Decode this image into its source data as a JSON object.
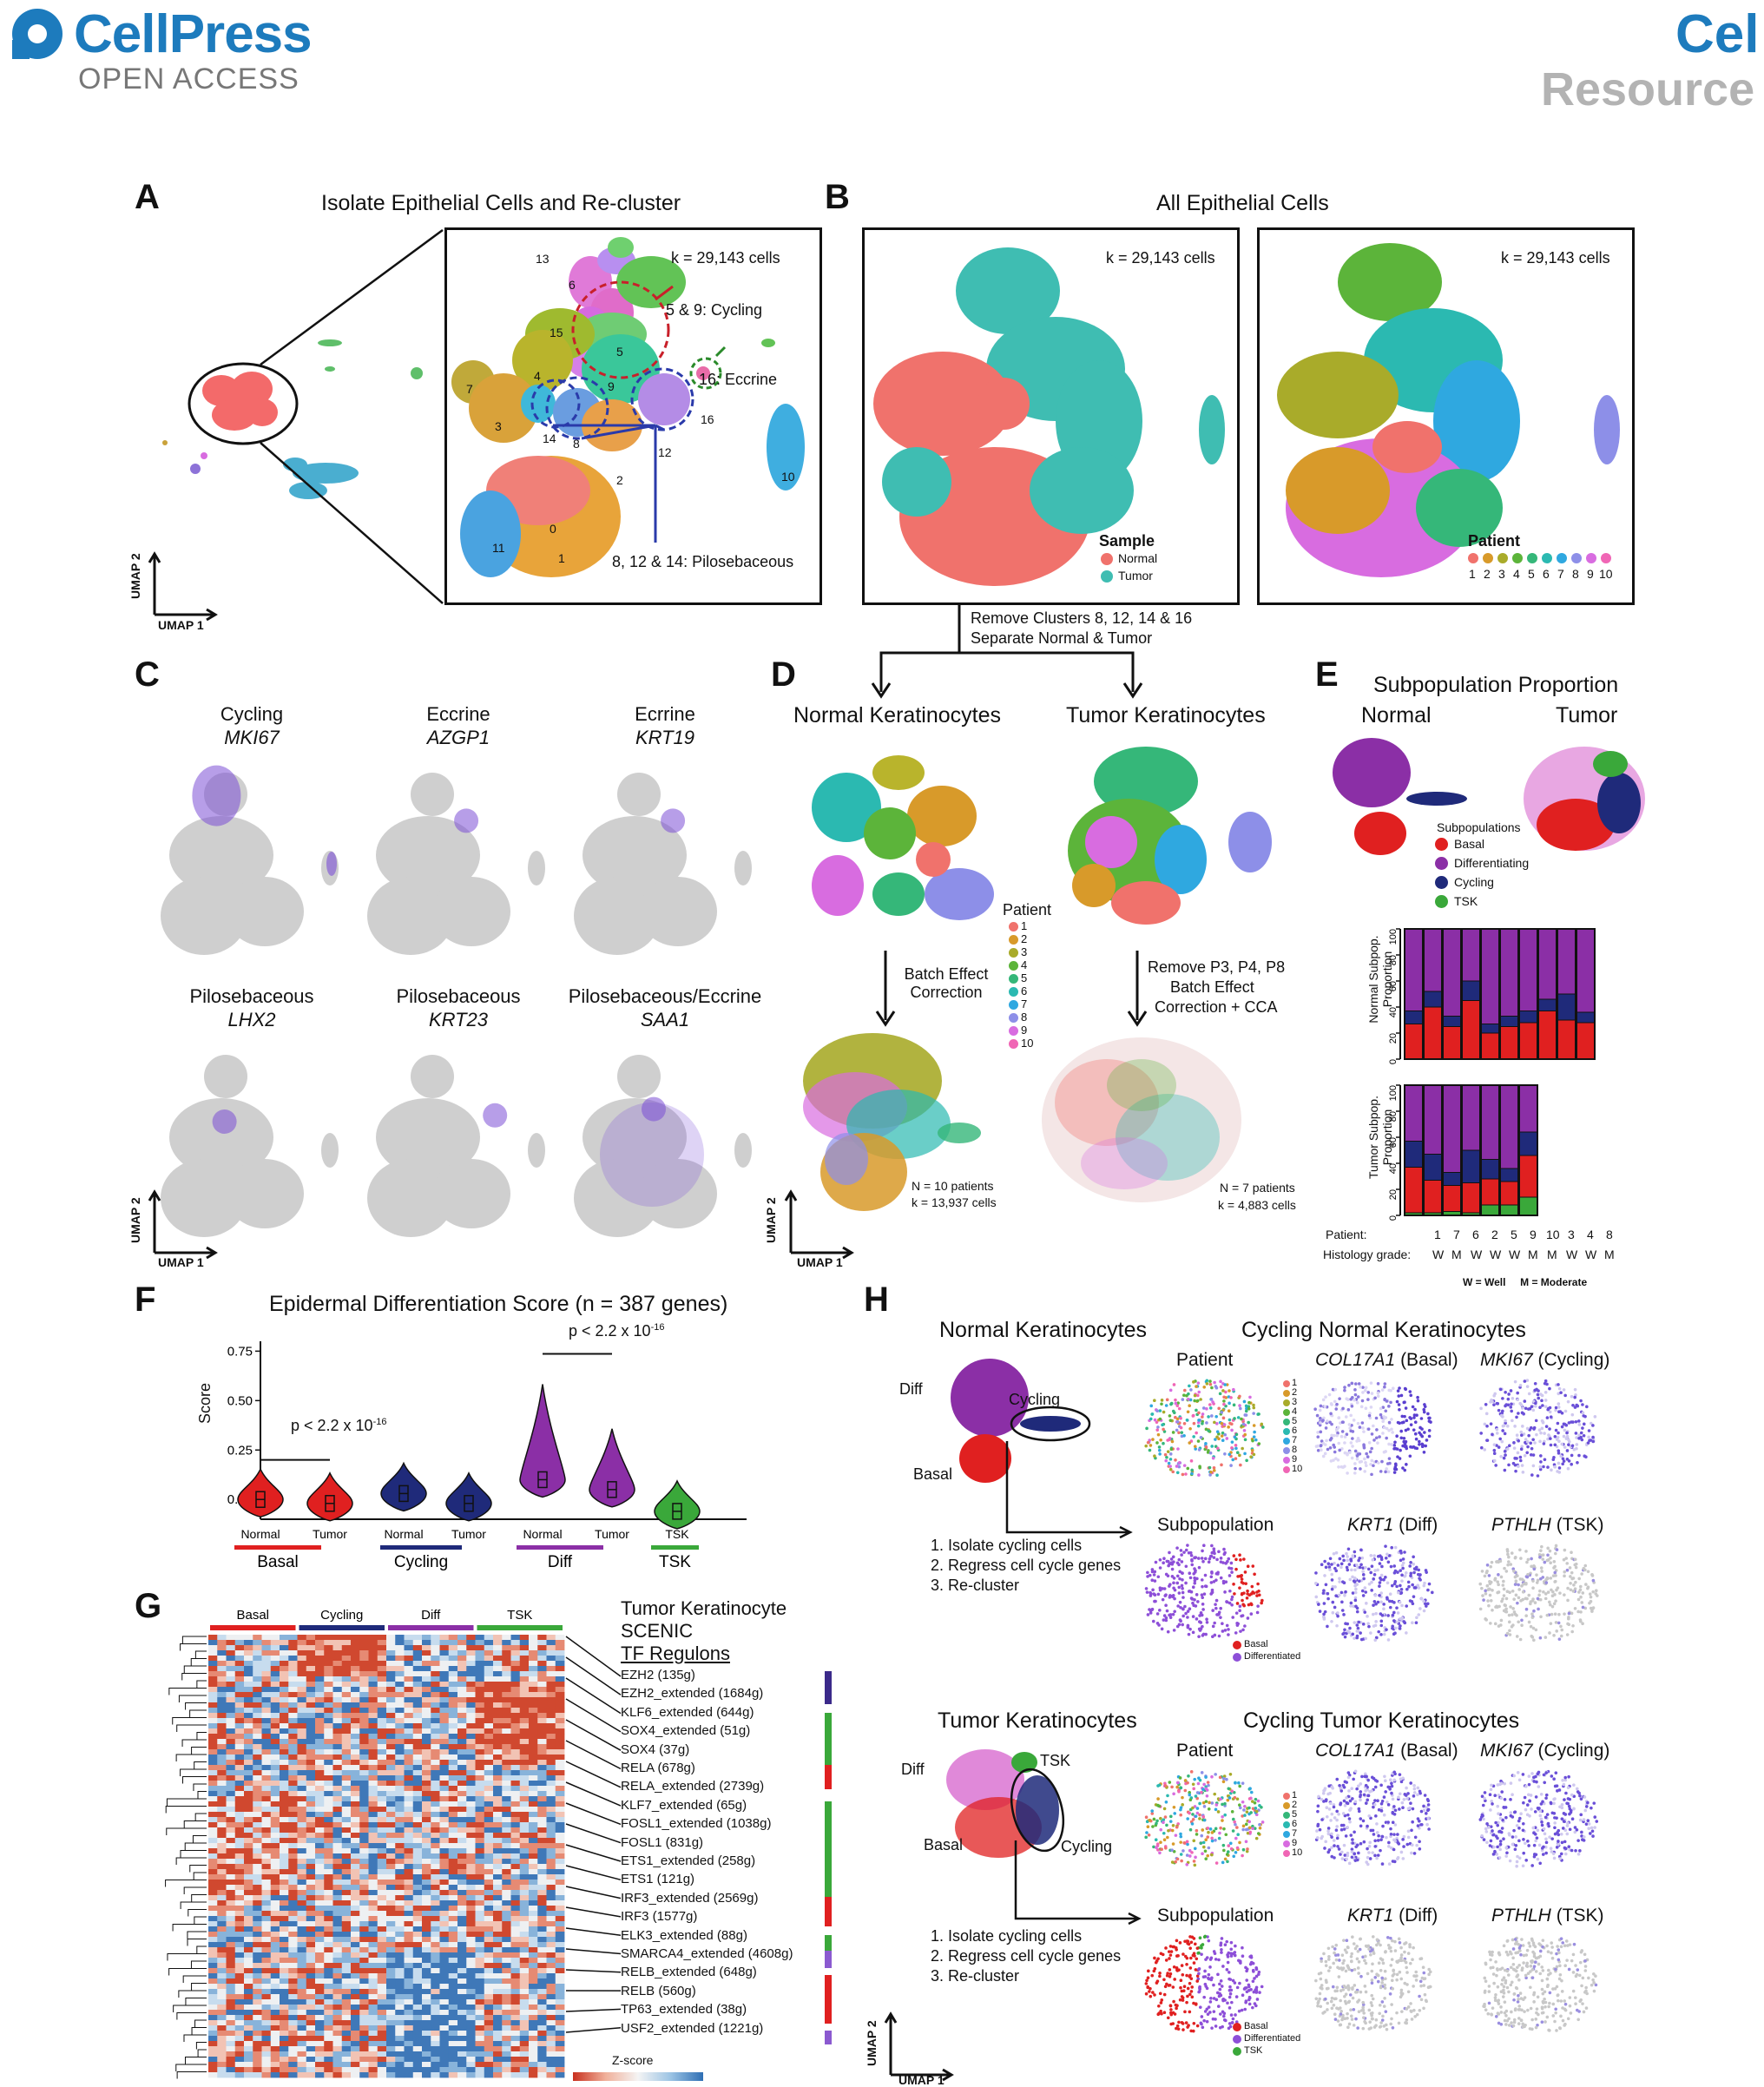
{
  "header": {
    "brand": "CellPress",
    "access": "OPEN ACCESS",
    "brand_right": "Cel",
    "article_type": "Resource"
  },
  "colors": {
    "brand": "#1d7bbd",
    "normal": "#f0726c",
    "tumor": "#3fbdb2",
    "basal": "#e02020",
    "differentiating": "#8b2fa6",
    "cycling": "#1f2a7a",
    "tsk": "#3aa83a",
    "feature_high": "#7b4fd6",
    "feature_low": "#cfcfcf"
  },
  "panelA": {
    "letter": "A",
    "title": "Isolate Epithelial Cells and Re-cluster",
    "cells": "k = 29,143 cells",
    "cluster_labels": [
      "13",
      "6",
      "15",
      "5",
      "9",
      "7",
      "4",
      "3",
      "14",
      "8",
      "2",
      "12",
      "16",
      "10",
      "0",
      "1",
      "11"
    ],
    "annot_cycling": "5 & 9: Cycling",
    "annot_eccrine": "16: Eccrine",
    "annot_pilo": "8, 12 & 14: Pilosebaceous",
    "axis_y": "UMAP 2",
    "axis_x": "UMAP 1"
  },
  "panelB": {
    "letter": "B",
    "title": "All Epithelial Cells",
    "cells_left": "k = 29,143 cells",
    "cells_right": "k = 29,143 cells",
    "sample_legend_title": "Sample",
    "sample_legend": [
      "Normal",
      "Tumor"
    ],
    "patient_legend_title": "Patient",
    "patient_legend": [
      "1",
      "2",
      "3",
      "4",
      "5",
      "6",
      "7",
      "8",
      "9",
      "10"
    ],
    "patient_colors": [
      "#f0726c",
      "#d89a2a",
      "#a9ab2a",
      "#5cb43a",
      "#35b779",
      "#2bb9b1",
      "#2fa8e0",
      "#8d8fe8",
      "#d86ce0",
      "#f066b5"
    ],
    "flow_line1": "Remove Clusters 8, 12, 14 & 16",
    "flow_line2": "Separate Normal & Tumor"
  },
  "panelC": {
    "letter": "C",
    "features": [
      {
        "group": "Cycling",
        "gene": "MKI67"
      },
      {
        "group": "Eccrine",
        "gene": "AZGP1"
      },
      {
        "group": "Ecrrine",
        "gene": "KRT19"
      },
      {
        "group": "Pilosebaceous",
        "gene": "LHX2"
      },
      {
        "group": "Pilosebaceous",
        "gene": "KRT23"
      },
      {
        "group": "Pilosebaceous/Eccrine",
        "gene": "SAA1"
      }
    ],
    "axis_y": "UMAP 2",
    "axis_x": "UMAP 1"
  },
  "panelD": {
    "letter": "D",
    "left_title": "Normal Keratinocytes",
    "right_title": "Tumor Keratinocytes",
    "patient_title": "Patient",
    "patient_labels": [
      "1",
      "2",
      "3",
      "4",
      "5",
      "6",
      "7",
      "8",
      "9",
      "10"
    ],
    "left_step": "Batch Effect Correction",
    "right_step1": "Remove P3, P4, P8",
    "right_step2": "Batch Effect",
    "right_step3": "Correction + CCA",
    "left_n": "N = 10 patients",
    "left_k": "k = 13,937 cells",
    "right_n": "N = 7 patients",
    "right_k": "k = 4,883 cells",
    "axis_y": "UMAP 2",
    "axis_x": "UMAP 1"
  },
  "panelE": {
    "letter": "E",
    "title": "Subpopulation Proportion",
    "normal_label": "Normal",
    "tumor_label": "Tumor",
    "legend_title": "Subpopulations",
    "legend": [
      "Basal",
      "Differentiating",
      "Cycling",
      "TSK"
    ],
    "normal_ylabel": "Normal Subpop. Proportion",
    "tumor_ylabel": "Tumor Subpop. Proportion",
    "yticks": [
      "0",
      "20",
      "40",
      "60",
      "80",
      "100"
    ],
    "patient_row_label": "Patient:",
    "patients": [
      "1",
      "7",
      "6",
      "2",
      "5",
      "9",
      "10",
      "3",
      "4",
      "8"
    ],
    "grade_row_label": "Histology grade:",
    "grades": [
      "W",
      "M",
      "W",
      "W",
      "W",
      "M",
      "M",
      "W",
      "W",
      "M"
    ],
    "grade_key": "W = Well     M = Moderate"
  },
  "chart_data": [
    {
      "type": "bar",
      "title": "",
      "ylabel": "Normal Subpop. Proportion",
      "ylim": [
        0,
        100
      ],
      "categories": [
        "1",
        "7",
        "6",
        "2",
        "5",
        "9",
        "10",
        "3",
        "4",
        "8"
      ],
      "series": [
        {
          "name": "Basal",
          "values": [
            27,
            40,
            25,
            45,
            20,
            25,
            28,
            37,
            30,
            28
          ]
        },
        {
          "name": "Cycling",
          "values": [
            10,
            12,
            8,
            15,
            7,
            8,
            9,
            9,
            20,
            8
          ]
        },
        {
          "name": "Differentiating",
          "values": [
            63,
            48,
            67,
            40,
            73,
            67,
            63,
            54,
            50,
            64
          ]
        }
      ]
    },
    {
      "type": "bar",
      "title": "",
      "ylabel": "Tumor Subpop. Proportion",
      "ylim": [
        0,
        100
      ],
      "categories": [
        "1",
        "7",
        "6",
        "2",
        "5",
        "9",
        "10"
      ],
      "series": [
        {
          "name": "TSK",
          "values": [
            2,
            2,
            3,
            2,
            8,
            8,
            14
          ]
        },
        {
          "name": "Basal",
          "values": [
            35,
            25,
            20,
            23,
            20,
            18,
            32
          ]
        },
        {
          "name": "Cycling",
          "values": [
            20,
            20,
            10,
            25,
            15,
            10,
            18
          ]
        },
        {
          "name": "Differentiating",
          "values": [
            43,
            53,
            67,
            50,
            57,
            64,
            36
          ]
        }
      ]
    },
    {
      "type": "violin",
      "title": "Epidermal Differentiation Score (n = 387 genes)",
      "ylabel": "Score",
      "ylim": [
        -0.1,
        0.8
      ],
      "yticks": [
        "0.00",
        "0.25",
        "0.50",
        "0.75"
      ],
      "categories": [
        "Normal",
        "Tumor",
        "Normal",
        "Tumor",
        "Normal",
        "Tumor",
        "TSK"
      ],
      "groups": [
        "Basal",
        "Basal",
        "Cycling",
        "Cycling",
        "Diff",
        "Diff",
        "TSK"
      ],
      "medians": [
        0.0,
        -0.02,
        0.03,
        -0.02,
        0.1,
        0.05,
        -0.06
      ],
      "annotations": [
        "p < 2.2 x 10⁻¹⁶",
        "p < 2.2 x 10⁻¹⁶"
      ]
    }
  ],
  "panelF": {
    "letter": "F",
    "title": "Epidermal Differentiation Score (n = 387 genes)",
    "ylabel": "Score",
    "yticks": [
      "0.00",
      "0.25",
      "0.50",
      "0.75"
    ],
    "pval1": "p < 2.2 x 10",
    "pval1_exp": "-16",
    "pval2": "p < 2.2 x 10",
    "pval2_exp": "-16",
    "xlabels": [
      "Normal",
      "Tumor",
      "Normal",
      "Tumor",
      "Normal",
      "Tumor",
      "TSK"
    ],
    "groups": [
      "Basal",
      "Cycling",
      "Diff",
      "TSK"
    ]
  },
  "panelG": {
    "letter": "G",
    "col_groups": [
      "Basal",
      "Cycling",
      "Diff",
      "TSK"
    ],
    "title_lines": [
      "Tumor Keratinocyte",
      "SCENIC",
      "TF Regulons"
    ],
    "regulons": [
      "EZH2 (135g)",
      "EZH2_extended (1684g)",
      "KLF6_extended (644g)",
      "SOX4_extended (51g)",
      "SOX4 (37g)",
      "RELA (678g)",
      "RELA_extended (2739g)",
      "KLF7_extended (65g)",
      "FOSL1_extended (1038g)",
      "FOSL1 (831g)",
      "ETS1_extended (258g)",
      "ETS1 (121g)",
      "IRF3_extended (2569g)",
      "IRF3 (1577g)",
      "ELK3_extended (88g)",
      "SMARCA4_extended (4608g)",
      "RELB_extended (648g)",
      "RELB (560g)",
      "TP63_extended (38g)",
      "USF2_extended (1221g)"
    ],
    "zscore": "Z-score"
  },
  "panelH": {
    "letter": "H",
    "normal_title": "Normal Keratinocytes",
    "normal_cycling_title": "Cycling Normal Keratinocytes",
    "tumor_title": "Tumor Keratinocytes",
    "tumor_cycling_title": "Cycling Tumor Keratinocytes",
    "lbl_diff": "Diff",
    "lbl_cycling": "Cycling",
    "lbl_basal": "Basal",
    "lbl_tsk": "TSK",
    "steps": [
      "1. Isolate cycling cells",
      "2. Regress cell cycle genes",
      "3. Re-cluster"
    ],
    "col_patient": "Patient",
    "col_col17": "COL17A1",
    "col_col17_suffix": " (Basal)",
    "col_mki": "MKI67",
    "col_mki_suffix": " (Cycling)",
    "col_subpop": "Subpopulation",
    "col_krt1": "KRT1",
    "col_krt1_suffix": " (Diff)",
    "col_pthlh": "PTHLH",
    "col_pthlh_suffix": " (TSK)",
    "normal_patients": [
      "1",
      "2",
      "3",
      "4",
      "5",
      "6",
      "7",
      "8",
      "9",
      "10"
    ],
    "tumor_patients": [
      "1",
      "2",
      "5",
      "6",
      "7",
      "9",
      "10"
    ],
    "legend_normal": [
      "Basal",
      "Differentiated"
    ],
    "legend_tumor": [
      "Basal",
      "Differentiated",
      "TSK"
    ],
    "axis_y": "UMAP 2",
    "axis_x": "UMAP 1"
  }
}
